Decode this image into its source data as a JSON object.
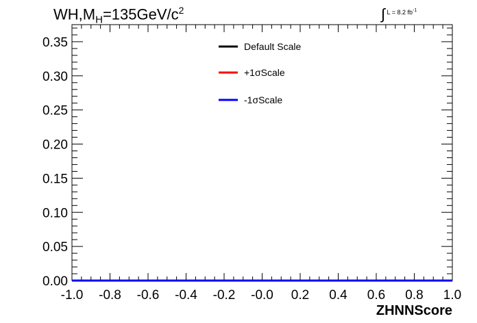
{
  "chart_data": {
    "type": "line",
    "title_parts": {
      "main": "WH,M",
      "sub": "H",
      "rest": "=135GeV/c",
      "sup": "2"
    },
    "lumi_label": {
      "integral": "∫",
      "text": "L = 8.2 fb",
      "sup": "-1"
    },
    "xlabel": "ZHNNScore",
    "ylabel": "",
    "xlim": [
      -1.0,
      1.0
    ],
    "ylim": [
      0.0,
      0.375
    ],
    "x_ticks": [
      "-1.0",
      "-0.8",
      "-0.6",
      "-0.4",
      "-0.2",
      "-0.0",
      "0.2",
      "0.4",
      "0.6",
      "0.8",
      "1.0"
    ],
    "y_ticks": [
      "0.00",
      "0.05",
      "0.10",
      "0.15",
      "0.20",
      "0.25",
      "0.30",
      "0.35"
    ],
    "grid": false,
    "legend_position": "top-center",
    "bin_edges": [
      -1.0,
      -0.95,
      -0.9,
      -0.85,
      -0.8,
      -0.75,
      -0.7,
      -0.65,
      -0.6,
      -0.55,
      -0.5,
      -0.45,
      -0.4,
      -0.35,
      -0.3,
      -0.25,
      -0.2,
      -0.15,
      -0.1,
      -0.05,
      0.0,
      0.05,
      0.1,
      0.15,
      0.2,
      0.25,
      0.3,
      0.35,
      0.4,
      0.45,
      0.5,
      0.55,
      0.6,
      0.65,
      0.7,
      0.75,
      0.8,
      0.85,
      0.9,
      0.95,
      1.0
    ],
    "series": [
      {
        "name": "Default Scale",
        "color": "#000000",
        "values": [
          0.0,
          0.0,
          0.0,
          0.0,
          0.0,
          0.0,
          0.0,
          0.0,
          0.0,
          0.0,
          0.0,
          0.0,
          0.0,
          0.0,
          0.0,
          0.0,
          0.0,
          0.0,
          0.0,
          0.0,
          0.0,
          0.0,
          0.0,
          0.0,
          0.0,
          0.0,
          0.0,
          0.0,
          0.0,
          0.0,
          0.0,
          0.0,
          0.0,
          0.0,
          0.0,
          0.0,
          0.0,
          0.0,
          0.0,
          0.0
        ]
      },
      {
        "name": "+1σScale",
        "color": "#ff0000",
        "values": [
          0.0,
          0.0,
          0.0,
          0.0,
          0.0,
          0.0,
          0.0,
          0.0,
          0.0,
          0.0,
          0.0,
          0.0,
          0.0,
          0.0,
          0.0,
          0.0,
          0.0,
          0.0,
          0.0,
          0.0,
          0.0,
          0.0,
          0.0,
          0.0,
          0.0,
          0.0,
          0.0,
          0.0,
          0.0,
          0.0,
          0.0,
          0.0,
          0.0,
          0.0,
          0.0,
          0.0,
          0.0,
          0.0,
          0.0,
          0.0
        ]
      },
      {
        "name": "-1σScale",
        "color": "#0000ff",
        "values": [
          0.0,
          0.0,
          0.0,
          0.0,
          0.0,
          0.0,
          0.0,
          0.0,
          0.0,
          0.0,
          0.0,
          0.0,
          0.0,
          0.0,
          0.0,
          0.0,
          0.0,
          0.0,
          0.0,
          0.0,
          0.0,
          0.0,
          0.0,
          0.0,
          0.0,
          0.0,
          0.0,
          0.0,
          0.0,
          0.0,
          0.0,
          0.0,
          0.0,
          0.0,
          0.0,
          0.0,
          0.0,
          0.0,
          0.0,
          0.0
        ]
      }
    ],
    "drawn_values": [
      0.0,
      0.0,
      0.0,
      0.0,
      0.0,
      0.0,
      0.0,
      0.0,
      0.0,
      0.0,
      0.0,
      0.0,
      0.0,
      0.0,
      0.0,
      0.0,
      0.0,
      0.0,
      0.0,
      0.0,
      0.0,
      0.0,
      0.0,
      0.0,
      0.0,
      0.0,
      0.0,
      0.0,
      0.0,
      0.0,
      0.0,
      0.0,
      0.0,
      0.0,
      0.0,
      0.0,
      0.0,
      0.0,
      0.0,
      0.0
    ]
  }
}
